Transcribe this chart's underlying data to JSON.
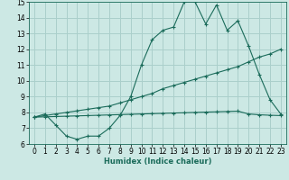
{
  "xlabel": "Humidex (Indice chaleur)",
  "bg_color": "#cce8e4",
  "grid_color": "#aacfcb",
  "line_color": "#1a6b5a",
  "xlim": [
    -0.5,
    23.5
  ],
  "ylim": [
    6,
    15
  ],
  "xticks": [
    0,
    1,
    2,
    3,
    4,
    5,
    6,
    7,
    8,
    9,
    10,
    11,
    12,
    13,
    14,
    15,
    16,
    17,
    18,
    19,
    20,
    21,
    22,
    23
  ],
  "yticks": [
    6,
    7,
    8,
    9,
    10,
    11,
    12,
    13,
    14,
    15
  ],
  "line1_x": [
    0,
    1,
    2,
    3,
    4,
    5,
    6,
    7,
    8,
    9,
    10,
    11,
    12,
    13,
    14,
    15,
    16,
    17,
    18,
    19,
    20,
    21,
    22,
    23
  ],
  "line1_y": [
    7.7,
    7.9,
    7.2,
    6.5,
    6.3,
    6.5,
    6.5,
    7.0,
    7.8,
    9.0,
    11.0,
    12.6,
    13.2,
    13.4,
    15.0,
    15.0,
    13.6,
    14.8,
    13.2,
    13.8,
    12.2,
    10.4,
    8.8,
    7.9
  ],
  "line2_x": [
    0,
    1,
    2,
    3,
    4,
    5,
    6,
    7,
    8,
    9,
    10,
    11,
    12,
    13,
    14,
    15,
    16,
    17,
    18,
    19,
    20,
    21,
    22,
    23
  ],
  "line2_y": [
    7.7,
    7.8,
    7.9,
    8.0,
    8.1,
    8.2,
    8.3,
    8.4,
    8.6,
    8.8,
    9.0,
    9.2,
    9.5,
    9.7,
    9.9,
    10.1,
    10.3,
    10.5,
    10.7,
    10.9,
    11.2,
    11.5,
    11.7,
    12.0
  ],
  "line3_x": [
    0,
    1,
    2,
    3,
    4,
    5,
    6,
    7,
    8,
    9,
    10,
    11,
    12,
    13,
    14,
    15,
    16,
    17,
    18,
    19,
    20,
    21,
    22,
    23
  ],
  "line3_y": [
    7.7,
    7.72,
    7.74,
    7.76,
    7.78,
    7.8,
    7.82,
    7.84,
    7.86,
    7.88,
    7.9,
    7.92,
    7.94,
    7.96,
    7.98,
    8.0,
    8.02,
    8.04,
    8.06,
    8.08,
    7.9,
    7.85,
    7.82,
    7.8
  ],
  "tick_fontsize": 5.5,
  "xlabel_fontsize": 6.0
}
